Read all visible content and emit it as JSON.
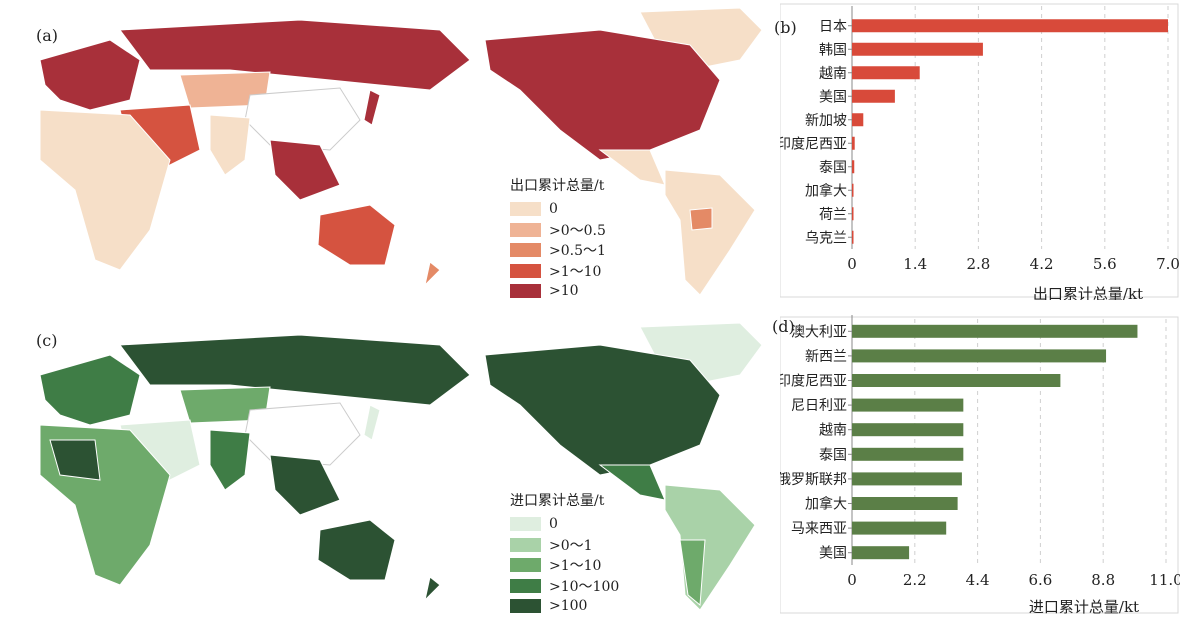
{
  "panels": {
    "a": {
      "label": "(a)",
      "legend_title": "出口累计总量/t",
      "legend": [
        "0",
        ">0～0.5",
        ">0.5～1",
        ">1～10",
        ">10"
      ],
      "colors": [
        "#f6dfc8",
        "#efb395",
        "#e48a66",
        "#d55340",
        "#a8303a"
      ]
    },
    "b": {
      "label": "(b)"
    },
    "c": {
      "label": "(c)",
      "legend_title": "进口累计总量/t",
      "legend": [
        "0",
        ">0～1",
        ">1～10",
        ">10～100",
        ">100"
      ],
      "colors": [
        "#dfeee0",
        "#a9d2a8",
        "#6eaa6b",
        "#3f7d46",
        "#2c5233"
      ]
    },
    "d": {
      "label": "(d)"
    }
  },
  "chart_data": [
    {
      "type": "bar",
      "orientation": "horizontal",
      "categories": [
        "日本",
        "韩国",
        "越南",
        "美国",
        "新加坡",
        "印度尼西亚",
        "泰国",
        "加拿大",
        "荷兰",
        "乌克兰"
      ],
      "values": [
        7.0,
        2.9,
        1.5,
        0.95,
        0.25,
        0.06,
        0.05,
        0.03,
        0.03,
        0.02
      ],
      "xlabel": "出口累计总量/kt",
      "xticks": [
        "0",
        "1.4",
        "2.8",
        "4.2",
        "5.6",
        "7.0"
      ],
      "xlim": [
        0,
        7.0
      ],
      "color": "#d84a3a",
      "grid": "vertical-dashed"
    },
    {
      "type": "bar",
      "orientation": "horizontal",
      "categories": [
        "澳大利亚",
        "新西兰",
        "印度尼西亚",
        "尼日利亚",
        "越南",
        "泰国",
        "俄罗斯联邦",
        "加拿大",
        "马来西亚",
        "美国"
      ],
      "values": [
        10.0,
        8.9,
        7.3,
        3.9,
        3.9,
        3.9,
        3.85,
        3.7,
        3.3,
        2.0
      ],
      "xlabel": "进口累计总量/kt",
      "xticks": [
        "0",
        "2.2",
        "4.4",
        "6.6",
        "8.8",
        "11.0"
      ],
      "xlim": [
        0,
        11.0
      ],
      "color": "#5b7f47",
      "grid": "vertical-dashed"
    }
  ]
}
